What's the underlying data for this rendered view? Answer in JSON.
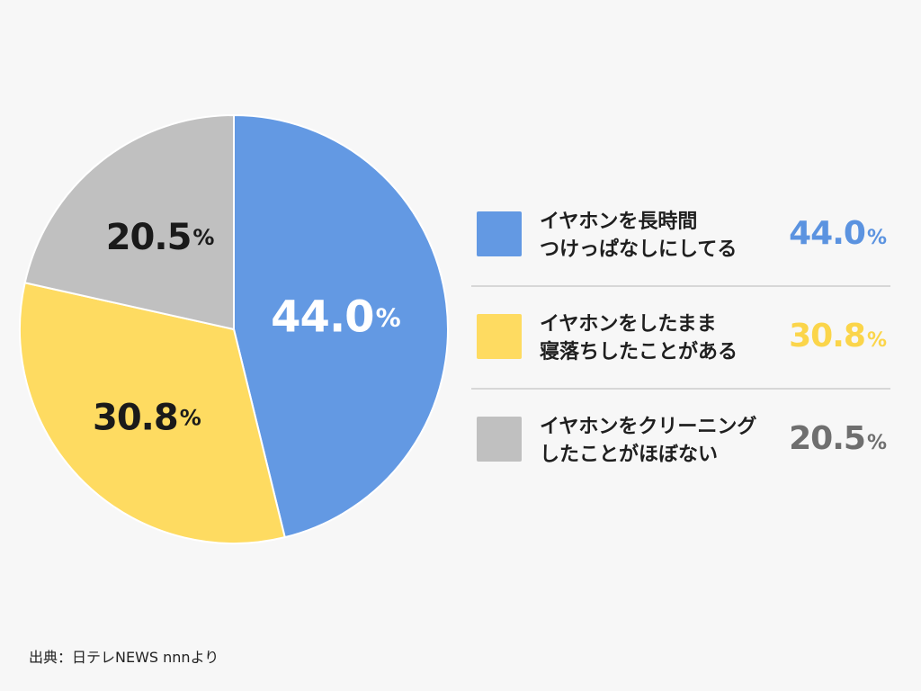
{
  "chart_data": {
    "type": "pie",
    "slices": [
      {
        "value": 44.0,
        "value_label": "44.0",
        "percent_sign": "%",
        "label_lines": [
          "イヤホンを長時間",
          "つけっぱなしにしてる"
        ],
        "color": "#6399e3"
      },
      {
        "value": 30.8,
        "value_label": "30.8",
        "percent_sign": "%",
        "label_lines": [
          "イヤホンをしたまま",
          "寝落ちしたことがある"
        ],
        "color": "#fedb61"
      },
      {
        "value": 20.5,
        "value_label": "20.5",
        "percent_sign": "%",
        "label_lines": [
          "イヤホンをクリーニング",
          "したことがほぼない"
        ],
        "color": "#c0c0c0"
      }
    ],
    "legend_value_colors": [
      "#5b93e0",
      "#fbd54a",
      "#6f6f6f"
    ],
    "pie_label_colors": [
      "#ffffff",
      "#1a1a1a",
      "#1a1a1a"
    ],
    "start": "12 o'clock",
    "direction": "clockwise"
  },
  "source": "出典：日テレNEWS nnnより"
}
